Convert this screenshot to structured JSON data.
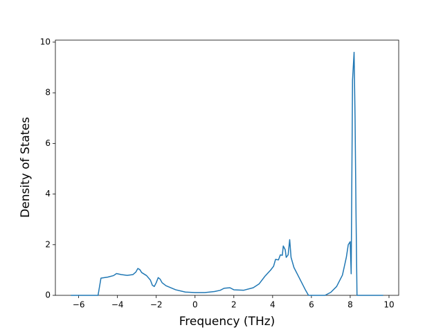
{
  "chart_data": {
    "type": "line",
    "x_label": "Frequency (THz)",
    "y_label": "Density of States",
    "x": [
      -6.4,
      -5.0,
      -4.85,
      -4.5,
      -4.2,
      -4.05,
      -3.8,
      -3.5,
      -3.2,
      -3.05,
      -2.95,
      -2.85,
      -2.75,
      -2.5,
      -2.3,
      -2.2,
      -2.1,
      -2.0,
      -1.9,
      -1.8,
      -1.7,
      -1.5,
      -1.0,
      -0.5,
      0,
      0.5,
      1.0,
      1.3,
      1.5,
      1.8,
      2.0,
      2.5,
      3.0,
      3.3,
      3.6,
      3.9,
      4.05,
      4.15,
      4.3,
      4.4,
      4.5,
      4.55,
      4.65,
      4.7,
      4.8,
      4.88,
      4.95,
      5.1,
      5.3,
      5.5,
      5.7,
      5.85,
      6.7,
      7.0,
      7.3,
      7.6,
      7.8,
      7.9,
      8.0,
      8.05,
      8.12,
      8.2,
      8.25,
      8.3,
      8.35,
      9.7
    ],
    "series": [
      {
        "color": "#1f77b4",
        "values": [
          0,
          0,
          0.68,
          0.72,
          0.78,
          0.86,
          0.82,
          0.79,
          0.82,
          0.92,
          1.06,
          1.02,
          0.9,
          0.78,
          0.6,
          0.4,
          0.35,
          0.5,
          0.7,
          0.64,
          0.5,
          0.38,
          0.22,
          0.13,
          0.11,
          0.11,
          0.15,
          0.2,
          0.28,
          0.3,
          0.22,
          0.2,
          0.3,
          0.45,
          0.75,
          1.0,
          1.15,
          1.42,
          1.4,
          1.6,
          1.58,
          1.95,
          1.8,
          1.5,
          1.6,
          2.2,
          1.5,
          1.1,
          0.8,
          0.5,
          0.2,
          0,
          0,
          0.12,
          0.35,
          0.8,
          1.5,
          2.0,
          2.12,
          0.85,
          8.5,
          9.6,
          7,
          3.2,
          0,
          0
        ]
      }
    ],
    "xlim": [
      -7.2,
      10.5
    ],
    "ylim": [
      0,
      10.08
    ],
    "xticks": [
      {
        "value": -6,
        "label": "−6"
      },
      {
        "value": -4,
        "label": "−4"
      },
      {
        "value": -2,
        "label": "−2"
      },
      0,
      2,
      4,
      6,
      8,
      10
    ],
    "yticks": [
      0,
      2,
      4,
      6,
      8,
      10
    ],
    "grid": false
  }
}
